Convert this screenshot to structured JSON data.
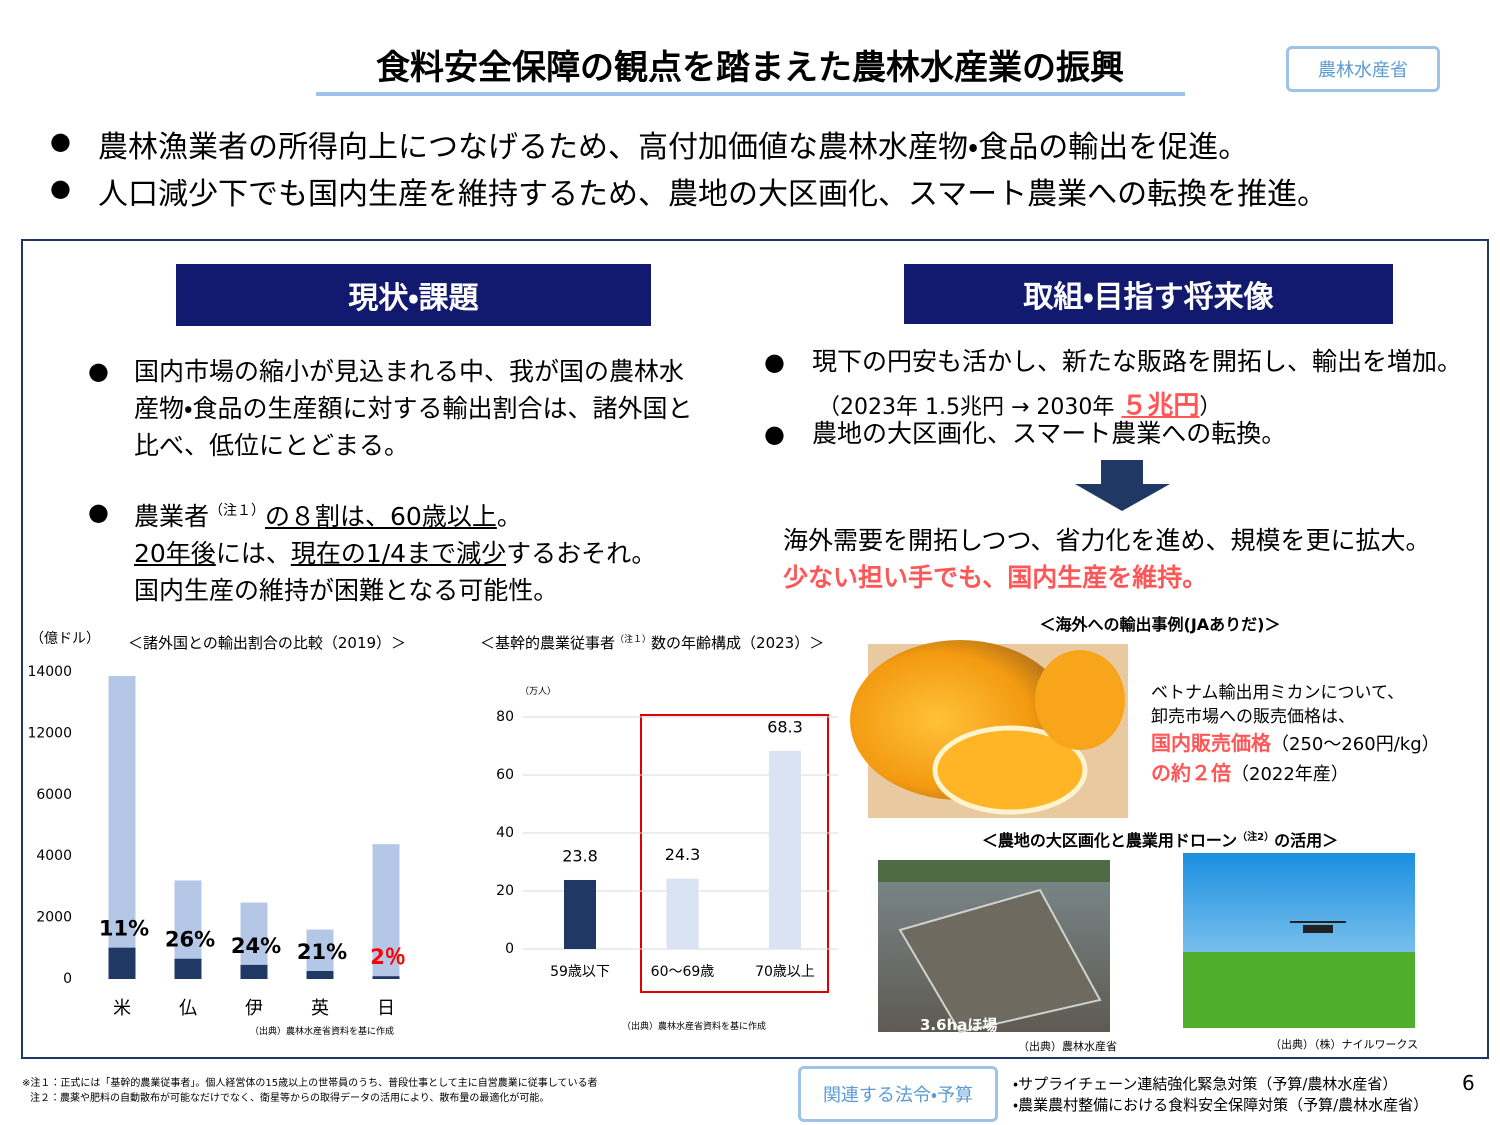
{
  "header": {
    "title": "食料安全保障の観点を踏まえた農林水産業の振興",
    "ministry": "農林水産省"
  },
  "summary": [
    "農林漁業者の所得向上につなげるため、高付加価値な農林水産物・食品の輸出を促進。",
    "人口減少下でも国内生産を維持するため、農地の大区画化、スマート農業への転換を推進。"
  ],
  "left": {
    "heading": "現状・課題",
    "point1": "国内市場の縮小が見込まれる中、我が国の農林水産物・食品の生産額に対する輸出割合は、諸外国と比べ、低位にとどまる。",
    "point2": [
      "農業者",
      "（注１）",
      "の８割は、60歳以上",
      "。",
      "20年後",
      "には、",
      "現在の1/4まで減少",
      "するおそれ。",
      "国内生産の維持が困難となる可能性。"
    ]
  },
  "right": {
    "heading": "取組・目指す将来像",
    "point1": "現下の円安も活かし、新たな販路を開拓し、輸出を増加。",
    "point1_note": [
      "（2023年 1.5兆円 → 2030年 ",
      "５兆円",
      "）"
    ],
    "point2": "農地の大区画化、スマート農業への転換。",
    "result": "海外需要を開拓しつつ、省力化を進め、規模を更に拡大。",
    "result_emphasis": "少ない担い手でも、国内生産を維持。"
  },
  "chart_data": [
    {
      "type": "bar",
      "title": "＜諸外国との輸出割合の比較（2019）＞",
      "unit": "（億ドル）",
      "source": "（出典）農林水産省資料を基に作成",
      "categories": [
        "米",
        "仏",
        "伊",
        "英",
        "日"
      ],
      "series": [
        {
          "color": "#b4c7e7",
          "values": [
            13870,
            3210,
            2490,
            1610,
            4390
          ]
        },
        {
          "color": "#1f3864",
          "values": [
            1020,
            660,
            460,
            260,
            90
          ]
        }
      ],
      "annotations": [
        {
          "text": "11%",
          "color": "#000000"
        },
        {
          "text": "26%",
          "color": "#000000"
        },
        {
          "text": "24%",
          "color": "#000000"
        },
        {
          "text": "21%",
          "color": "#000000"
        },
        {
          "text": "2％",
          "color": "#ff0000"
        }
      ],
      "ylim": [
        0,
        14000
      ],
      "yticks": [
        0,
        2000,
        4000,
        6000,
        12000,
        14000
      ],
      "grid": false
    },
    {
      "type": "bar",
      "title": [
        "＜基幹的農業従事者",
        "（注１）",
        "数の年齢構成（2023）＞"
      ],
      "unit": "（万人）",
      "source": "（出典）農林水産省資料を基に作成",
      "categories": [
        "59歳以下",
        "60～69歳",
        "70歳以上"
      ],
      "values": [
        23.8,
        24.3,
        68.3
      ],
      "colors": [
        "#203864",
        "#dae3f3",
        "#dae3f3"
      ],
      "ylim": [
        0,
        80
      ],
      "yticks": [
        0,
        20,
        40,
        60,
        80
      ],
      "grid": true
    }
  ],
  "export_case": {
    "title": "＜海外への輸出事例(JAありだ)＞",
    "lines": [
      "ベトナム輸出用ミカンについて、",
      "卸売市場への販売価格は、",
      "国内販売価格",
      "（250～260円/kg）",
      "の約２倍",
      "（2022年産）"
    ]
  },
  "drone_case": {
    "title": [
      "＜農地の大区画化と農業用ドローン",
      "（注2）",
      "の活用＞"
    ],
    "photo_label": "3.6haほ場",
    "sources": [
      "（出典）農林水産省",
      "（出典）（株）ナイルワークス"
    ]
  },
  "footnotes": [
    "※注１：正式には「基幹的農業従事者」。個人経営体の15歳以上の世帯員のうち、普段仕事として主に自営農業に従事している者",
    "注２：農薬や肥料の自動散布が可能なだけでなく、衛星等からの取得データの活用により、散布量の最適化が可能。"
  ],
  "related": {
    "button": "関連する法令・予算",
    "items": [
      "・サプライチェーン連結強化緊急対策（予算/農林水産省）",
      "・農業農村整備における食料安全保障対策（予算/農林水産省）"
    ]
  },
  "page_number": "6"
}
